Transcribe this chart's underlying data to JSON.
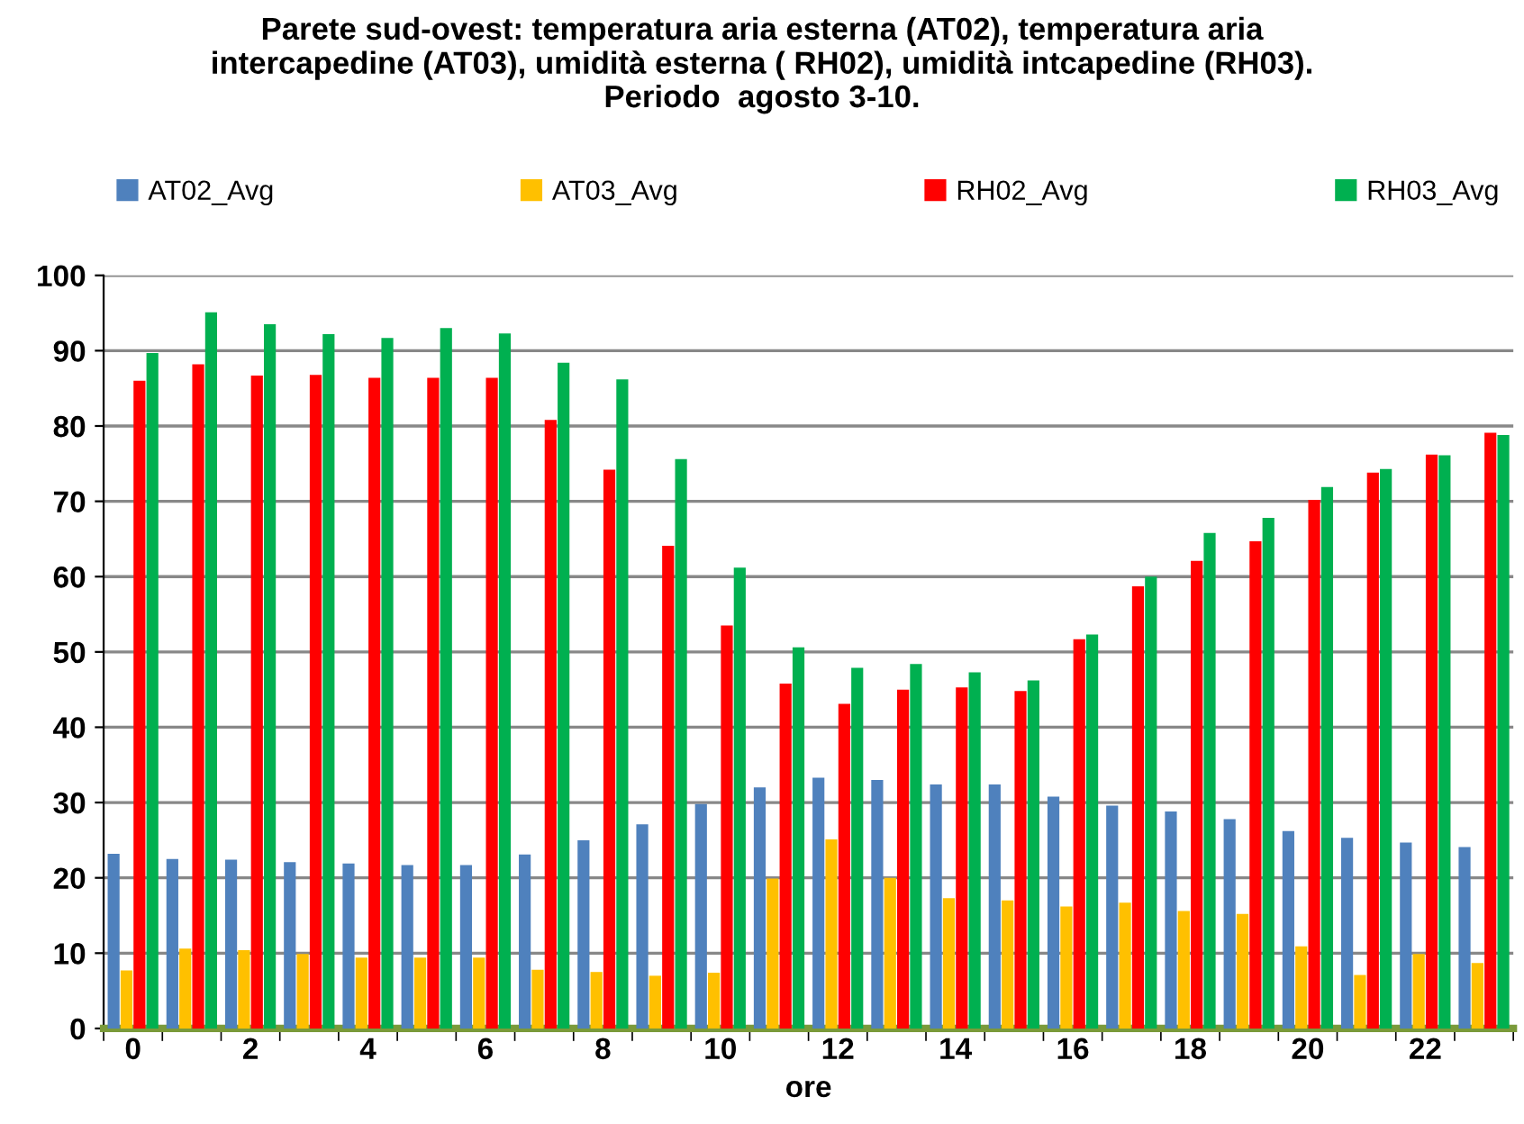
{
  "chart_data": {
    "type": "bar",
    "title": "Parete sud-ovest: temperatura aria esterna (AT02), temperatura aria\nintercapedine (AT03), umidità esterna ( RH02), umidità intcapedine (RH03).\nPeriodo  agosto 3-10.",
    "xlabel": "ore",
    "categories": [
      "0",
      null,
      "2",
      null,
      "4",
      null,
      "6",
      null,
      "8",
      null,
      "10",
      null,
      "12",
      null,
      "14",
      null,
      "16",
      null,
      "18",
      null,
      "20",
      null,
      "22",
      null
    ],
    "series": [
      {
        "name": "AT02_Avg",
        "color": "#4f81bd",
        "values": [
          23.2,
          22.5,
          22.4,
          22.1,
          21.9,
          21.7,
          21.7,
          23.1,
          25,
          27.1,
          29.8,
          32,
          33.3,
          33,
          32.4,
          32.4,
          30.8,
          29.6,
          28.8,
          27.8,
          26.2,
          25.3,
          24.7,
          24.1
        ]
      },
      {
        "name": "AT03_Avg",
        "color": "#ffc000",
        "values": [
          7.7,
          10.6,
          10.4,
          9.9,
          9.4,
          9.4,
          9.4,
          7.8,
          7.5,
          7,
          7.4,
          19.9,
          25.1,
          20,
          17.3,
          17,
          16.2,
          16.7,
          15.6,
          15.2,
          10.9,
          7.1,
          9.9,
          8.7
        ]
      },
      {
        "name": "RH02_Avg",
        "color": "#ff0000",
        "values": [
          86,
          88.2,
          86.7,
          86.8,
          86.4,
          86.4,
          86.4,
          80.8,
          74.2,
          64.1,
          53.5,
          45.8,
          43.1,
          45,
          45.3,
          44.8,
          51.7,
          58.7,
          62.1,
          64.7,
          70.2,
          73.8,
          76.2,
          79.1
        ]
      },
      {
        "name": "RH03_Avg",
        "color": "#00b050",
        "values": [
          89.7,
          95.1,
          93.5,
          92.2,
          91.7,
          93,
          92.3,
          88.4,
          86.2,
          75.6,
          61.2,
          50.6,
          47.9,
          48.4,
          47.3,
          46.2,
          52.3,
          60,
          65.8,
          67.8,
          71.9,
          74.3,
          76.1,
          78.8
        ]
      }
    ],
    "ylim": [
      0,
      100
    ],
    "yticks": [
      0,
      10,
      20,
      30,
      40,
      50,
      60,
      70,
      80,
      90,
      100
    ],
    "grid": "y",
    "legend": "top"
  }
}
